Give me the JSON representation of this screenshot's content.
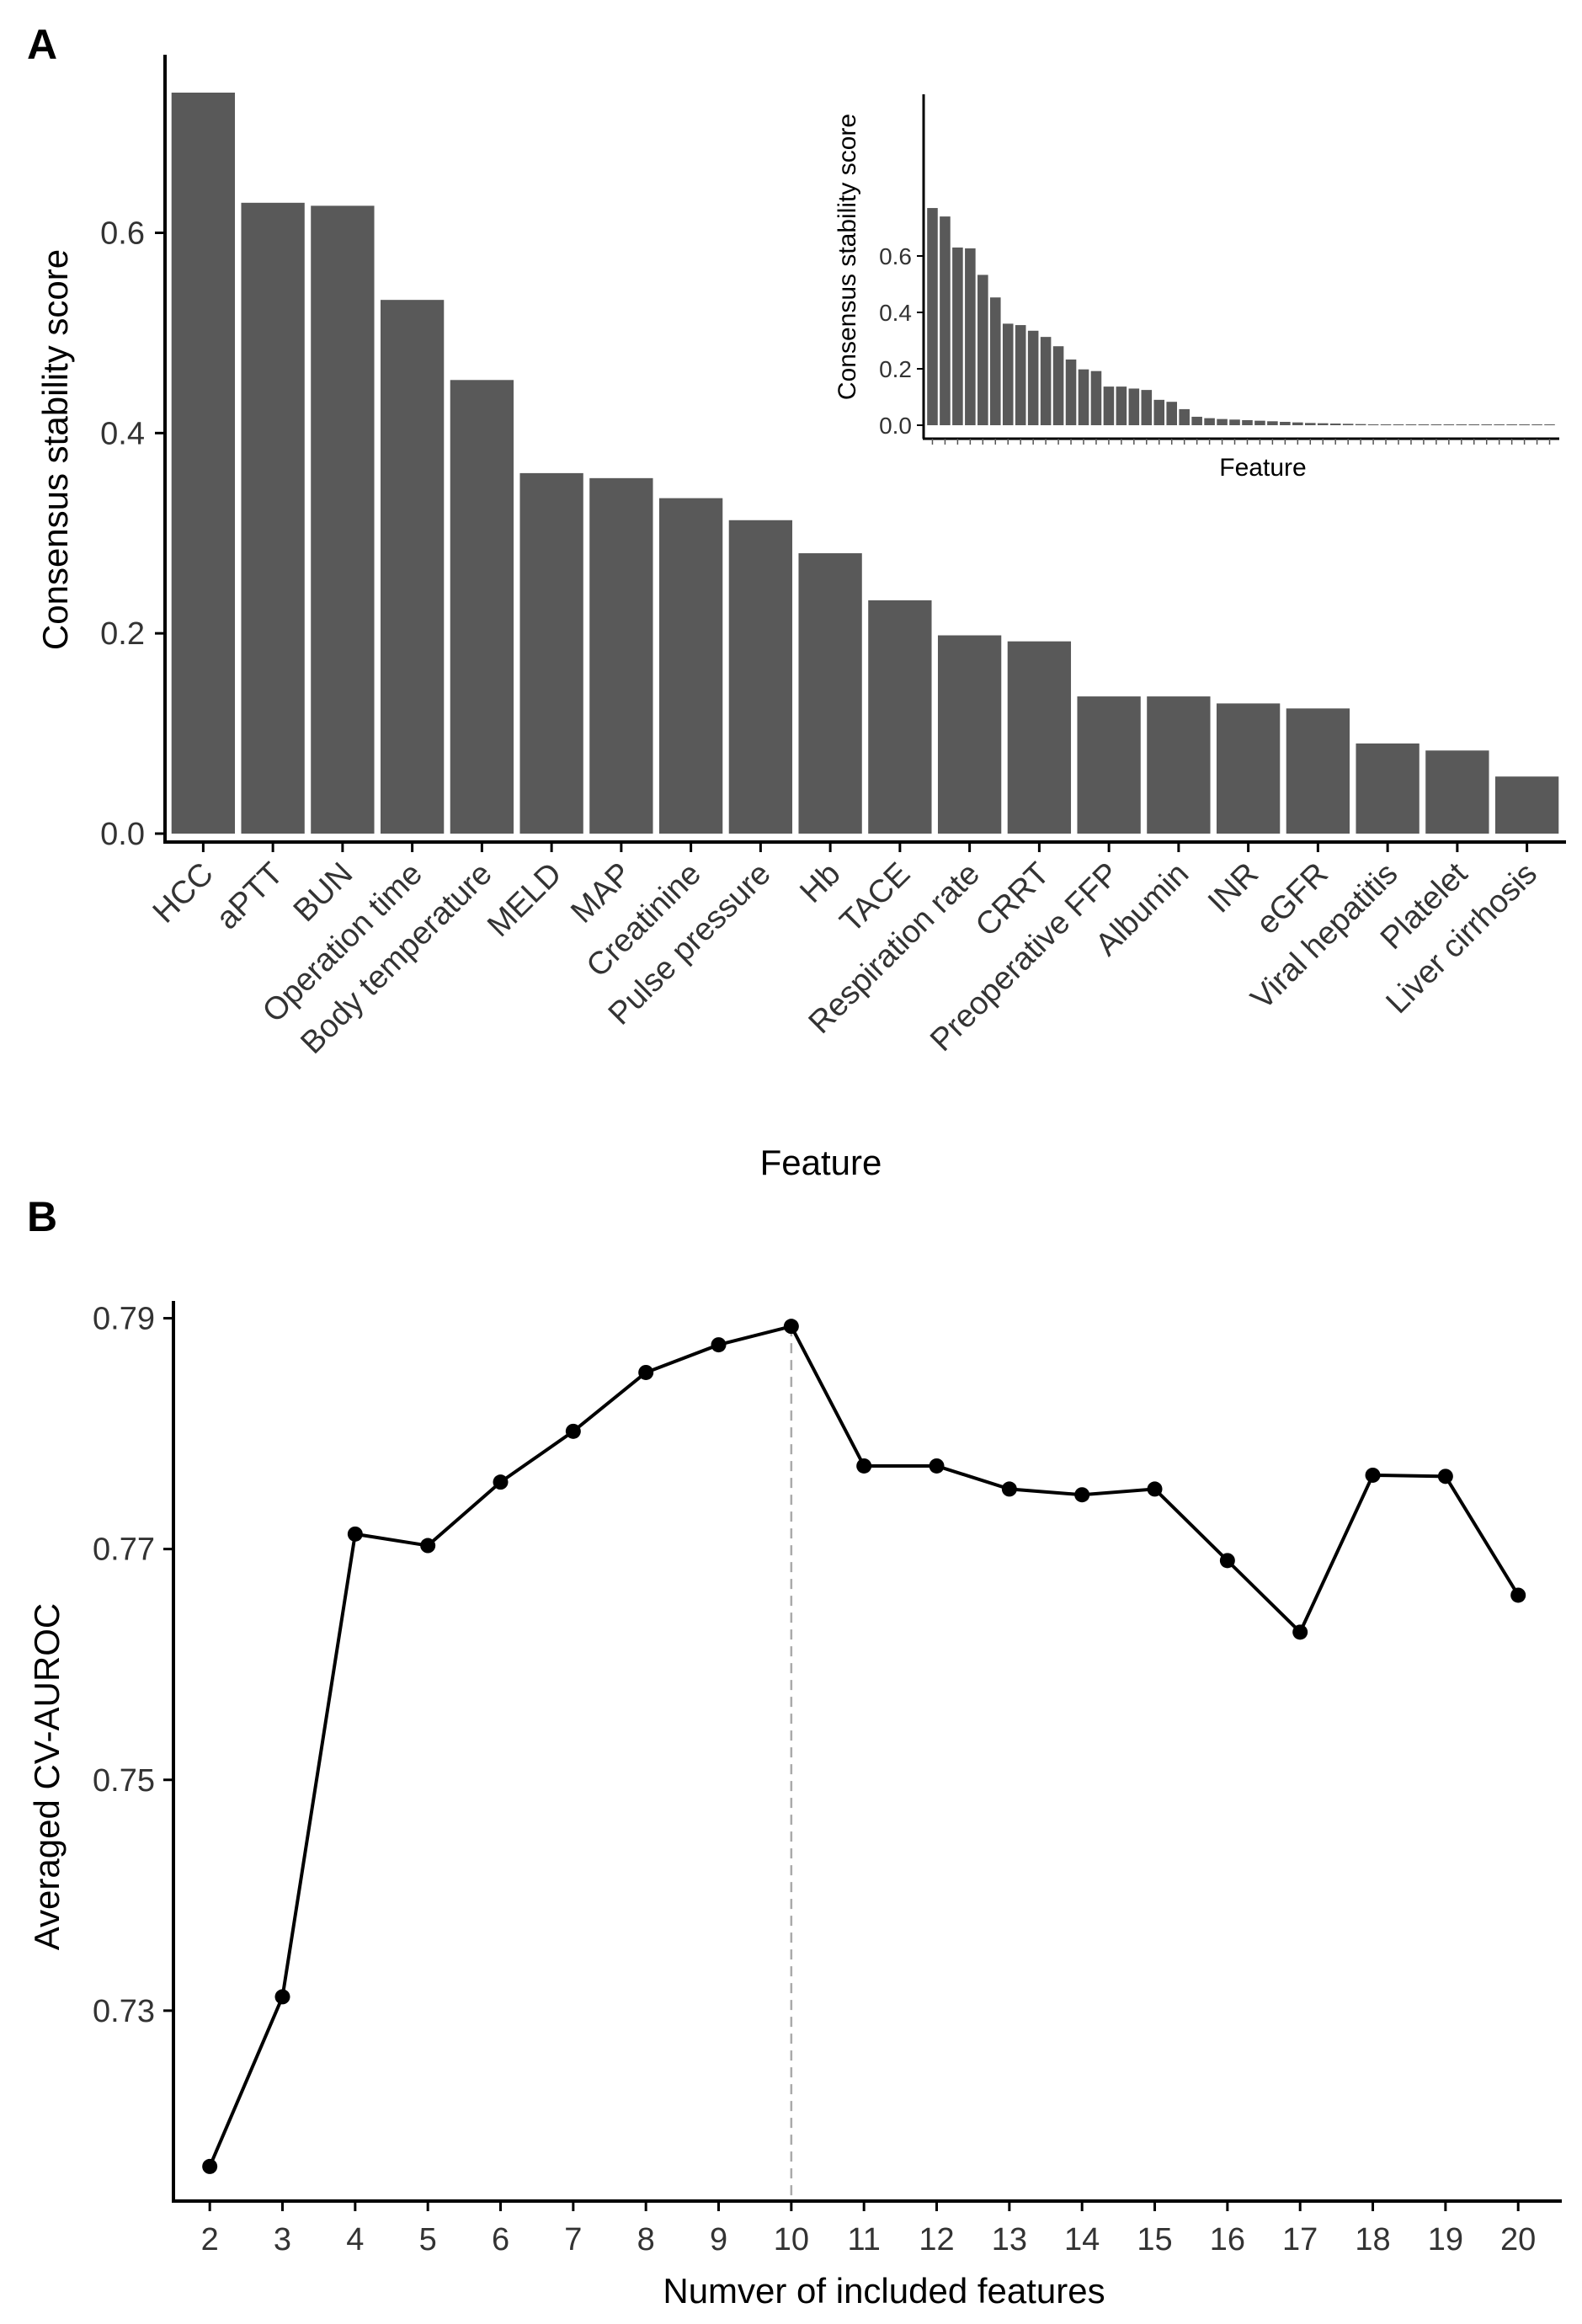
{
  "panels": {
    "a_label": "A",
    "b_label": "B"
  },
  "chart_data": [
    {
      "panel": "A",
      "type": "bar",
      "xlabel": "Feature",
      "ylabel": "Consensus stability score",
      "ylim": [
        0,
        0.74
      ],
      "yticks": [
        "0.0",
        "0.2",
        "0.4",
        "0.6"
      ],
      "yticks_values": [
        0,
        0.2,
        0.4,
        0.6
      ],
      "categories": [
        "HCC",
        "aPTT",
        "BUN",
        "Operation time",
        "Body temperature",
        "MELD",
        "MAP",
        "Creatinine",
        "Pulse pressure",
        "Hb",
        "TACE",
        "Respiration rate",
        "CRRT",
        "Preoperative FFP",
        "Albumin",
        "INR",
        "eGFR",
        "Viral hepatitis",
        "Platelet",
        "Liver cirrhosis"
      ],
      "values": [
        0.74,
        0.63,
        0.627,
        0.533,
        0.453,
        0.36,
        0.355,
        0.335,
        0.313,
        0.28,
        0.233,
        0.198,
        0.192,
        0.137,
        0.137,
        0.13,
        0.125,
        0.09,
        0.083,
        0.057
      ],
      "bar_color": "#595959",
      "grid": false,
      "inset": {
        "type": "bar",
        "xlabel": "Feature",
        "ylabel": "Consensus stability score",
        "yticks": [
          "0.0",
          "0.2",
          "0.4",
          "0.6"
        ],
        "yticks_values": [
          0,
          0.2,
          0.4,
          0.6
        ],
        "values": [
          0.77,
          0.74,
          0.63,
          0.627,
          0.533,
          0.453,
          0.36,
          0.355,
          0.335,
          0.313,
          0.28,
          0.233,
          0.198,
          0.192,
          0.137,
          0.137,
          0.13,
          0.125,
          0.09,
          0.083,
          0.057,
          0.03,
          0.025,
          0.022,
          0.02,
          0.018,
          0.016,
          0.014,
          0.012,
          0.01,
          0.008,
          0.007,
          0.006,
          0.005,
          0.004,
          0.003,
          0.002,
          0.002,
          0.001,
          0.001,
          0.001,
          0.001,
          0.0005,
          0.0005,
          0.0005,
          0.0003,
          0.0003,
          0.0002,
          0.0002,
          0.0001
        ]
      }
    },
    {
      "panel": "B",
      "type": "line",
      "xlabel": "Numver of included features",
      "ylabel": "Averaged CV-AUROC",
      "x": [
        2,
        3,
        4,
        5,
        6,
        7,
        8,
        9,
        10,
        11,
        12,
        13,
        14,
        15,
        16,
        17,
        18,
        19,
        20
      ],
      "y": [
        0.7165,
        0.7312,
        0.7713,
        0.7703,
        0.7758,
        0.7802,
        0.7853,
        0.7877,
        0.7893,
        0.7772,
        0.7772,
        0.7752,
        0.7747,
        0.7752,
        0.769,
        0.7628,
        0.7764,
        0.7763,
        0.766
      ],
      "yticks": [
        "0.73",
        "0.75",
        "0.77",
        "0.79"
      ],
      "yticks_values": [
        0.73,
        0.75,
        0.77,
        0.79
      ],
      "ylim": [
        0.7135,
        0.7915
      ],
      "xlim": [
        1.5,
        20.6
      ],
      "vline_x": 10,
      "line_color": "#000000",
      "grid": false
    }
  ]
}
